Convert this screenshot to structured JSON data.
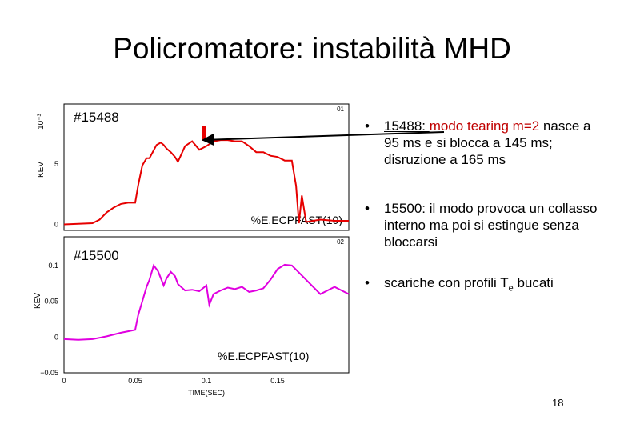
{
  "slide": {
    "title": "Policromatore: instabilità MHD",
    "page_number": "18"
  },
  "bullets": [
    {
      "prefix": "15488: ",
      "highlight": "modo tearing m=2",
      "rest": "nasce a 95 ms e si blocca a 145 ms; disruzione a 165 ms"
    },
    {
      "text": "15500: il modo provoca un collasso interno ma poi si estingue senza bloccarsi"
    },
    {
      "text_before": "scariche con profili T",
      "subscript": "e",
      "text_after": " bucati"
    }
  ],
  "chart_data": [
    {
      "type": "line",
      "shot_label": "#15488",
      "trace_label": "%E.ECPFAST(10)",
      "panel_id": "01",
      "ylabel": "KEV",
      "y_multiplier_label": "10⁻³",
      "y_ticks": [
        "5",
        "0"
      ],
      "y_tick_values": [
        5,
        0
      ],
      "ylim": [
        -0.5,
        10
      ],
      "xlim": [
        0,
        0.2
      ],
      "color": "#e60000",
      "series": [
        {
          "x": [
            0.0,
            0.02,
            0.025,
            0.03,
            0.035,
            0.04,
            0.045,
            0.05,
            0.052,
            0.055,
            0.058,
            0.06,
            0.065,
            0.068,
            0.07,
            0.072,
            0.075,
            0.078,
            0.08,
            0.085,
            0.09,
            0.095,
            0.1,
            0.105,
            0.11,
            0.115,
            0.12,
            0.125,
            0.13,
            0.135,
            0.14,
            0.145,
            0.15,
            0.155,
            0.16,
            0.163,
            0.165,
            0.167,
            0.17,
            0.175,
            0.18,
            0.19,
            0.2
          ],
          "y": [
            0.0,
            0.1,
            0.4,
            1.0,
            1.4,
            1.7,
            1.8,
            1.8,
            3.2,
            4.9,
            5.5,
            5.5,
            6.6,
            6.8,
            6.6,
            6.3,
            6.0,
            5.6,
            5.2,
            6.5,
            6.9,
            6.2,
            6.5,
            6.9,
            7.0,
            7.0,
            6.9,
            6.9,
            6.5,
            6.0,
            6.0,
            5.7,
            5.6,
            5.3,
            5.3,
            3.2,
            0.1,
            2.4,
            0.2,
            0.3,
            0.4,
            0.3,
            0.3
          ]
        }
      ]
    },
    {
      "type": "line",
      "shot_label": "#15500",
      "trace_label": "%E.ECPFAST(10)",
      "panel_id": "02",
      "ylabel": "KEV",
      "y_ticks": [
        "0.1",
        "0.05",
        "0",
        "−0.05"
      ],
      "y_tick_values": [
        0.1,
        0.05,
        0,
        -0.05
      ],
      "xlabel": "TIME(SEC)",
      "x_ticks": [
        "0",
        "0.05",
        "0.1",
        "0.15"
      ],
      "x_tick_values": [
        0,
        0.05,
        0.1,
        0.15
      ],
      "xlim": [
        0,
        0.2
      ],
      "ylim": [
        -0.05,
        0.14
      ],
      "color": "#e000e0",
      "series": [
        {
          "x": [
            0.0,
            0.01,
            0.02,
            0.03,
            0.04,
            0.045,
            0.05,
            0.052,
            0.055,
            0.058,
            0.06,
            0.063,
            0.066,
            0.07,
            0.072,
            0.075,
            0.078,
            0.08,
            0.085,
            0.09,
            0.095,
            0.1,
            0.102,
            0.105,
            0.11,
            0.115,
            0.12,
            0.125,
            0.13,
            0.135,
            0.14,
            0.145,
            0.15,
            0.155,
            0.16,
            0.17,
            0.18,
            0.19,
            0.2
          ],
          "y": [
            -0.003,
            -0.004,
            -0.003,
            0.001,
            0.006,
            0.008,
            0.01,
            0.03,
            0.05,
            0.07,
            0.08,
            0.1,
            0.092,
            0.072,
            0.082,
            0.091,
            0.085,
            0.074,
            0.065,
            0.066,
            0.064,
            0.072,
            0.045,
            0.06,
            0.065,
            0.069,
            0.067,
            0.07,
            0.063,
            0.065,
            0.068,
            0.08,
            0.095,
            0.101,
            0.1,
            0.08,
            0.06,
            0.07,
            0.06
          ]
        }
      ]
    }
  ]
}
